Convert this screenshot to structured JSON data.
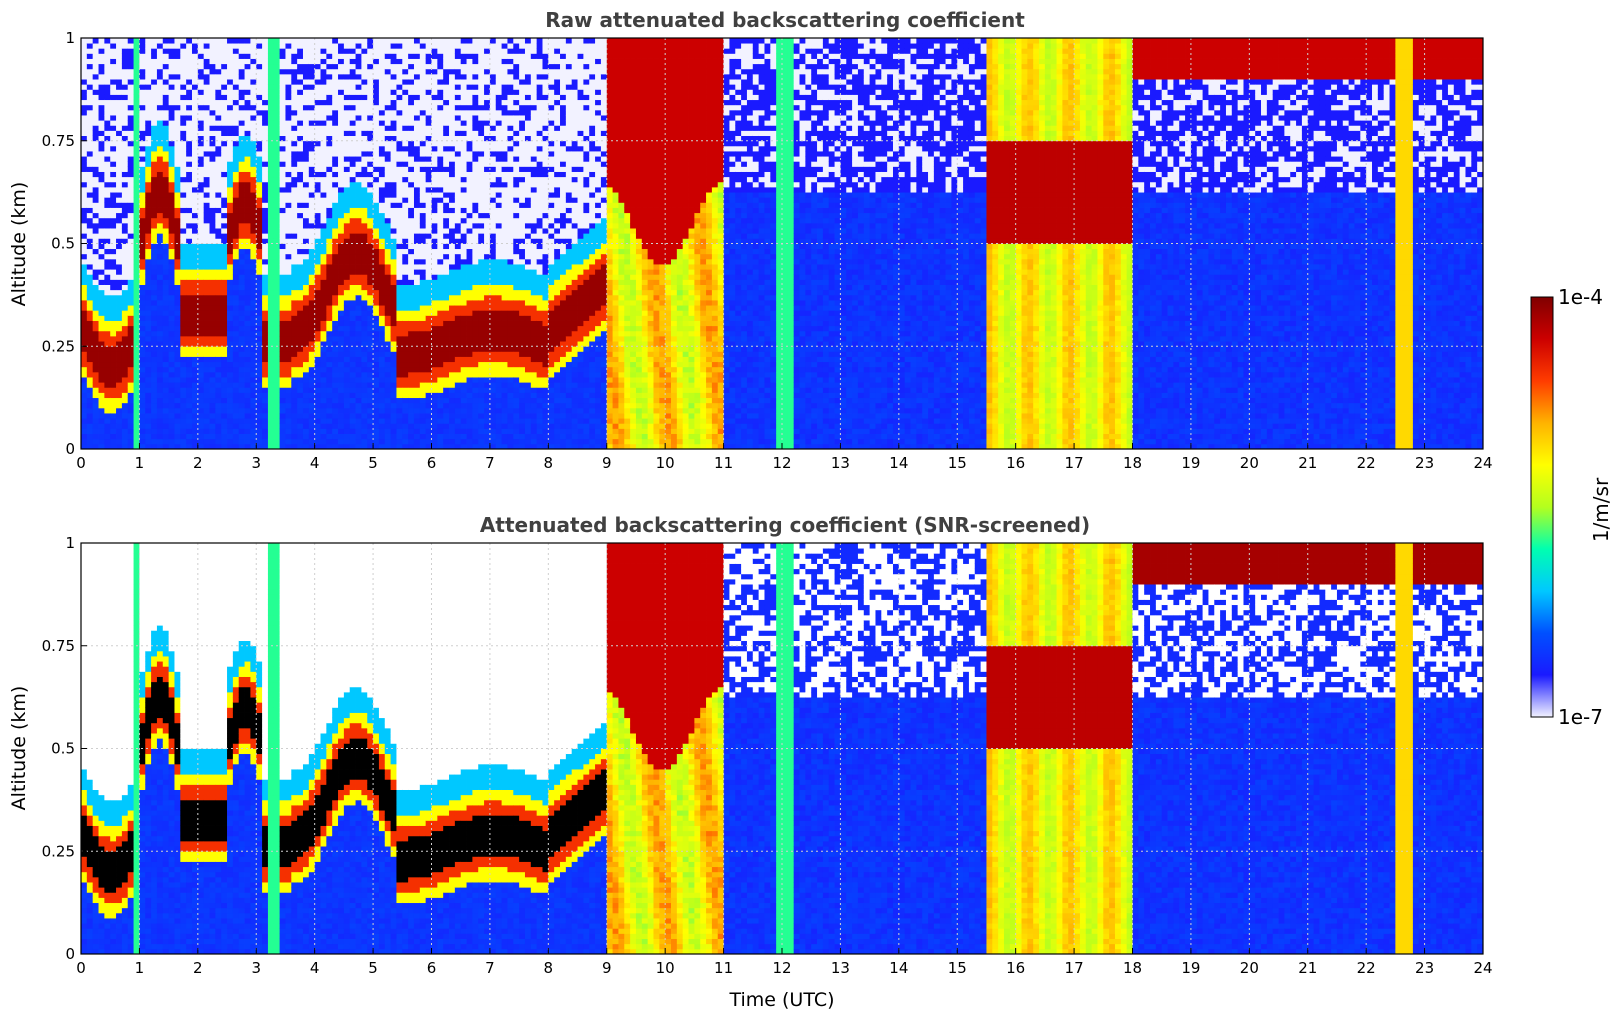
{
  "figure": {
    "colorbar": {
      "label": "1/m/sr",
      "max_label": "1e-4",
      "min_label": "1e-7",
      "colormap": [
        "#f2f2ff",
        "#1a1aff",
        "#0050ff",
        "#00c8ff",
        "#00ffb0",
        "#b4ff1e",
        "#ffff00",
        "#ffb300",
        "#ff3c00",
        "#cc0000",
        "#800000"
      ]
    },
    "xlabel": "Time (UTC)"
  },
  "chart_data": [
    {
      "type": "heatmap",
      "title": "Raw attenuated backscattering coefficient",
      "xlabel": "",
      "ylabel": "Altitude (km)",
      "xlim": [
        0,
        24
      ],
      "ylim": [
        0,
        1
      ],
      "x_ticks": [
        "0",
        "1",
        "2",
        "3",
        "4",
        "5",
        "6",
        "7",
        "8",
        "9",
        "10",
        "11",
        "12",
        "13",
        "14",
        "15",
        "16",
        "17",
        "18",
        "19",
        "20",
        "21",
        "22",
        "23",
        "24"
      ],
      "y_ticks": [
        "0",
        "0.25",
        "0.5",
        "0.75",
        "1"
      ],
      "grid": true,
      "color_scale": "log",
      "value_range": [
        1e-07,
        0.0001
      ],
      "screened": false
    },
    {
      "type": "heatmap",
      "title": "Attenuated backscattering coefficient (SNR-screened)",
      "xlabel": "Time (UTC)",
      "ylabel": "Altitude (km)",
      "xlim": [
        0,
        24
      ],
      "ylim": [
        0,
        1
      ],
      "x_ticks": [
        "0",
        "1",
        "2",
        "3",
        "4",
        "5",
        "6",
        "7",
        "8",
        "9",
        "10",
        "11",
        "12",
        "13",
        "14",
        "15",
        "16",
        "17",
        "18",
        "19",
        "20",
        "21",
        "22",
        "23",
        "24"
      ],
      "y_ticks": [
        "0",
        "0.25",
        "0.5",
        "0.75",
        "1"
      ],
      "grid": true,
      "color_scale": "log",
      "value_range": [
        1e-07,
        0.0001
      ],
      "screened": true
    }
  ]
}
